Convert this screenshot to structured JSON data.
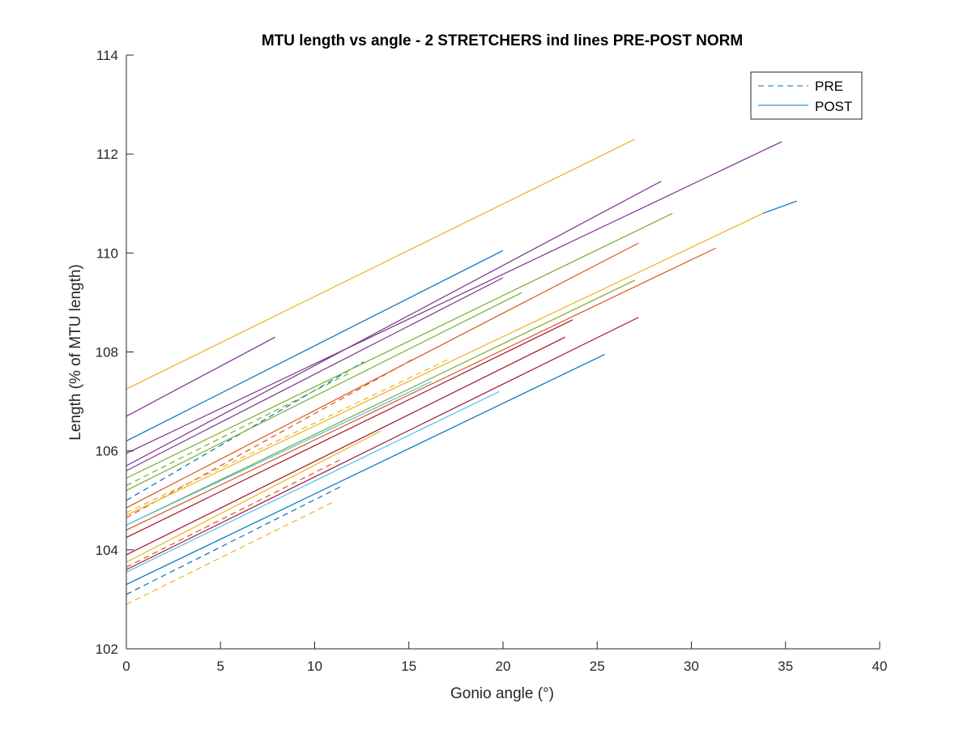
{
  "chart_data": {
    "type": "line",
    "title": "MTU length vs angle - 2 STRETCHERS ind lines PRE-POST NORM",
    "xlabel": "Gonio angle (°)",
    "ylabel": "Length (% of MTU length)",
    "xlim": [
      0,
      40
    ],
    "ylim": [
      102,
      114
    ],
    "xticks": [
      0,
      5,
      10,
      15,
      20,
      25,
      30,
      35,
      40
    ],
    "yticks": [
      102,
      104,
      106,
      108,
      110,
      112,
      114
    ],
    "grid": false,
    "legend": {
      "placement": "top-right",
      "entries": [
        {
          "label": "PRE",
          "style": "dashed",
          "color": "#0072BD"
        },
        {
          "label": "POST",
          "style": "solid",
          "color": "#0072BD"
        }
      ]
    },
    "colors": {
      "blue": "#0072BD",
      "orange": "#D95319",
      "yellow": "#EDB120",
      "purple": "#7E2F8E",
      "green": "#77AC30",
      "cyan": "#4DBEEE",
      "maroon": "#A2142F"
    },
    "series": [
      {
        "group": "PRE",
        "color": "#EDB120",
        "x": [
          0,
          10.9
        ],
        "y": [
          102.9,
          104.95
        ]
      },
      {
        "group": "PRE",
        "color": "#0072BD",
        "x": [
          0,
          11.5
        ],
        "y": [
          103.1,
          105.3
        ]
      },
      {
        "group": "PRE",
        "color": "#D95319",
        "x": [
          0,
          11.5
        ],
        "y": [
          103.65,
          105.85
        ]
      },
      {
        "group": "PRE",
        "color": "#0072BD",
        "x": [
          0,
          12.6
        ],
        "y": [
          105.0,
          107.8
        ]
      },
      {
        "group": "PRE",
        "color": "#D95319",
        "x": [
          0,
          15.2
        ],
        "y": [
          104.65,
          107.85
        ]
      },
      {
        "group": "PRE",
        "color": "#EDB120",
        "x": [
          0,
          17.1
        ],
        "y": [
          104.75,
          107.85
        ]
      },
      {
        "group": "PRE",
        "color": "#77AC30",
        "x": [
          0,
          12.0
        ],
        "y": [
          105.3,
          107.6
        ]
      },
      {
        "group": "POST",
        "color": "#EDB120",
        "x": [
          0,
          27.0
        ],
        "y": [
          107.25,
          112.3
        ]
      },
      {
        "group": "POST",
        "color": "#7E2F8E",
        "x": [
          0,
          7.9
        ],
        "y": [
          106.7,
          108.3
        ]
      },
      {
        "group": "POST",
        "color": "#0072BD",
        "x": [
          0,
          20.0
        ],
        "y": [
          106.2,
          110.05
        ]
      },
      {
        "group": "POST",
        "color": "#7E2F8E",
        "x": [
          0,
          34.8
        ],
        "y": [
          105.95,
          112.25
        ]
      },
      {
        "group": "POST",
        "color": "#7E2F8E",
        "x": [
          0,
          28.4
        ],
        "y": [
          105.7,
          111.45
        ]
      },
      {
        "group": "POST",
        "color": "#7E2F8E",
        "x": [
          0,
          20.0
        ],
        "y": [
          105.6,
          109.5
        ]
      },
      {
        "group": "POST",
        "color": "#77AC30",
        "x": [
          0,
          29.0
        ],
        "y": [
          105.45,
          110.8
        ]
      },
      {
        "group": "POST",
        "color": "#77AC30",
        "x": [
          0,
          21.0
        ],
        "y": [
          105.2,
          109.2
        ]
      },
      {
        "group": "POST",
        "color": "#D95319",
        "x": [
          0,
          27.2
        ],
        "y": [
          104.85,
          110.2
        ]
      },
      {
        "group": "POST",
        "color": "#EDB120",
        "x": [
          0,
          33.8
        ],
        "y": [
          104.7,
          110.8
        ]
      },
      {
        "group": "POST",
        "color": "#0072BD",
        "x": [
          33.8,
          35.6
        ],
        "y": [
          110.8,
          111.05
        ]
      },
      {
        "group": "POST",
        "color": "#77AC30",
        "x": [
          0,
          27.0
        ],
        "y": [
          104.5,
          109.45
        ]
      },
      {
        "group": "POST",
        "color": "#D95319",
        "x": [
          0,
          31.3
        ],
        "y": [
          104.4,
          110.1
        ]
      },
      {
        "group": "POST",
        "color": "#4DBEEE",
        "x": [
          0,
          16.2
        ],
        "y": [
          104.5,
          107.4
        ]
      },
      {
        "group": "POST",
        "color": "#A2142F",
        "x": [
          0,
          23.7
        ],
        "y": [
          104.25,
          108.65
        ]
      },
      {
        "group": "POST",
        "color": "#A2142F",
        "x": [
          0,
          23.3
        ],
        "y": [
          103.9,
          108.3
        ]
      },
      {
        "group": "POST",
        "color": "#A2142F",
        "x": [
          0,
          27.2
        ],
        "y": [
          103.6,
          108.7
        ]
      },
      {
        "group": "POST",
        "color": "#EDB120",
        "x": [
          0,
          13.5
        ],
        "y": [
          103.75,
          106.4
        ]
      },
      {
        "group": "POST",
        "color": "#4DBEEE",
        "x": [
          0,
          19.8
        ],
        "y": [
          103.55,
          107.2
        ]
      },
      {
        "group": "POST",
        "color": "#0072BD",
        "x": [
          0,
          25.4
        ],
        "y": [
          103.3,
          107.95
        ]
      }
    ]
  }
}
